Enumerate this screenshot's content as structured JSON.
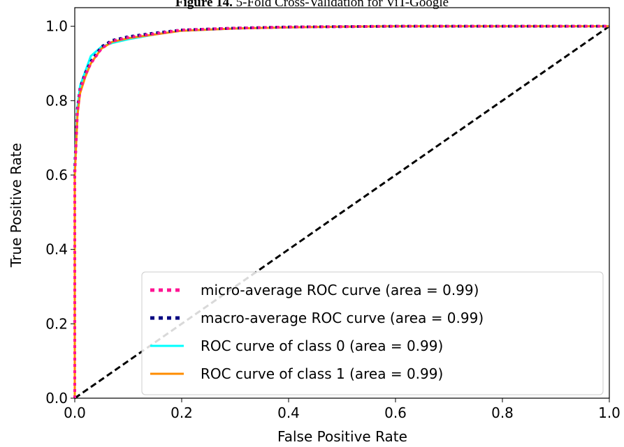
{
  "figure": {
    "caption_label": "Figure 14.",
    "caption_text": "5-Fold Cross-Validation for ViT-Google"
  },
  "chart_data": {
    "type": "line",
    "title": "",
    "xlabel": "False Positive Rate",
    "ylabel": "True Positive Rate",
    "xlim": [
      0.0,
      1.0
    ],
    "ylim": [
      0.0,
      1.05
    ],
    "xticks": [
      0.0,
      0.2,
      0.4,
      0.6,
      0.8,
      1.0
    ],
    "xtick_labels": [
      "0.0",
      "0.2",
      "0.4",
      "0.6",
      "0.8",
      "1.0"
    ],
    "yticks": [
      0.0,
      0.2,
      0.4,
      0.6,
      0.8,
      1.0
    ],
    "ytick_labels": [
      "0.0",
      "0.2",
      "0.4",
      "0.6",
      "0.8",
      "1.0"
    ],
    "grid": false,
    "legend_position": "lower-right",
    "series": [
      {
        "name": "micro-average ROC curve (area = 0.99)",
        "color": "#ff1493",
        "style": "dotted",
        "x": [
          0.0,
          0.0,
          0.005,
          0.01,
          0.02,
          0.03,
          0.05,
          0.07,
          0.1,
          0.15,
          0.2,
          0.3,
          0.4,
          0.5,
          0.6,
          0.8,
          1.0
        ],
        "y": [
          0.0,
          0.6,
          0.77,
          0.83,
          0.87,
          0.9,
          0.94,
          0.96,
          0.97,
          0.98,
          0.99,
          0.995,
          0.998,
          0.999,
          1.0,
          1.0,
          1.0
        ]
      },
      {
        "name": "macro-average ROC curve (area = 0.99)",
        "color": "#000080",
        "style": "dotted",
        "x": [
          0.0,
          0.0,
          0.005,
          0.01,
          0.02,
          0.03,
          0.05,
          0.07,
          0.1,
          0.15,
          0.2,
          0.3,
          0.4,
          0.5,
          0.6,
          0.8,
          1.0
        ],
        "y": [
          0.0,
          0.62,
          0.78,
          0.835,
          0.875,
          0.905,
          0.945,
          0.962,
          0.972,
          0.982,
          0.99,
          0.995,
          0.998,
          0.999,
          1.0,
          1.0,
          1.0
        ]
      },
      {
        "name": "ROC curve of class 0 (area = 0.99)",
        "color": "#00ffff",
        "style": "solid",
        "x": [
          0.0,
          0.0,
          0.005,
          0.01,
          0.02,
          0.03,
          0.05,
          0.07,
          0.1,
          0.15,
          0.2,
          0.3,
          0.4,
          0.5,
          0.6,
          0.8,
          1.0
        ],
        "y": [
          0.0,
          0.62,
          0.78,
          0.84,
          0.88,
          0.92,
          0.945,
          0.955,
          0.965,
          0.978,
          0.988,
          0.994,
          0.997,
          0.999,
          1.0,
          1.0,
          1.0
        ]
      },
      {
        "name": "ROC curve of class 1 (area = 0.99)",
        "color": "#ff8c00",
        "style": "solid",
        "x": [
          0.0,
          0.0,
          0.005,
          0.01,
          0.02,
          0.03,
          0.05,
          0.07,
          0.1,
          0.15,
          0.2,
          0.3,
          0.4,
          0.5,
          0.6,
          0.8,
          1.0
        ],
        "y": [
          0.0,
          0.6,
          0.76,
          0.82,
          0.865,
          0.9,
          0.94,
          0.958,
          0.968,
          0.978,
          0.988,
          0.994,
          0.997,
          0.999,
          1.0,
          1.0,
          1.0
        ]
      },
      {
        "name": "",
        "color": "#000000",
        "style": "dashed",
        "x": [
          0.0,
          1.0
        ],
        "y": [
          0.0,
          1.0
        ]
      }
    ]
  }
}
